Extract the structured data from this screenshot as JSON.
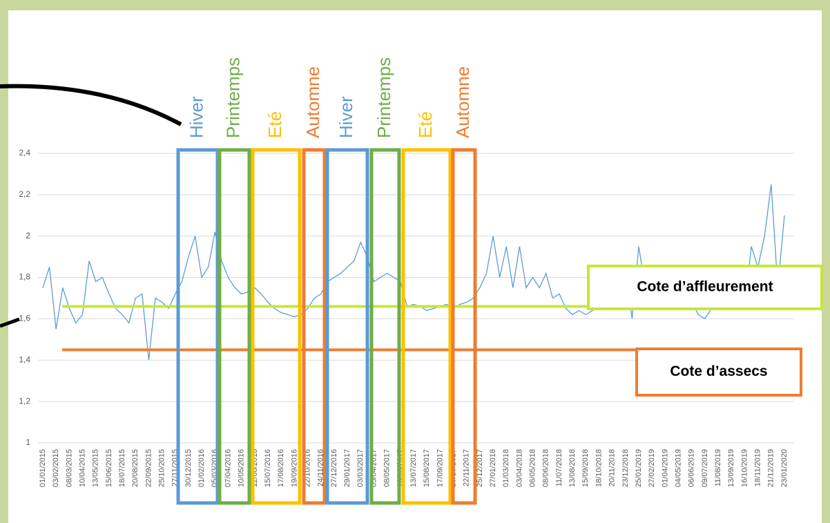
{
  "chart_data": {
    "type": "line",
    "categories": [
      "01/01/2015",
      null,
      "03/02/2015",
      null,
      "08/03/2015",
      null,
      "10/04/2015",
      null,
      "13/05/2015",
      null,
      "15/06/2015",
      null,
      "18/07/2015",
      null,
      "20/08/2015",
      null,
      "22/09/2015",
      null,
      "25/10/2015",
      null,
      "27/11/2015",
      null,
      "30/12/2015",
      null,
      "01/02/2016",
      null,
      "05/03/2016",
      null,
      "07/04/2016",
      null,
      "10/05/2016",
      null,
      "12/06/2016",
      null,
      "15/07/2016",
      null,
      "17/08/2016",
      null,
      "19/09/2016",
      null,
      "22/10/2016",
      null,
      "24/11/2016",
      null,
      "27/12/2016",
      null,
      "29/01/2017",
      null,
      "03/03/2017",
      null,
      "05/04/2017",
      null,
      "08/05/2017",
      null,
      "10/06/2017",
      null,
      "13/07/2017",
      null,
      "15/08/2017",
      null,
      "17/09/2017",
      null,
      "20/10/2017",
      null,
      "22/11/2017",
      null,
      "25/12/2017",
      null,
      "27/01/2018",
      null,
      "01/03/2018",
      null,
      "03/04/2018",
      null,
      "06/05/2018",
      null,
      "08/06/2018",
      null,
      "11/07/2018",
      null,
      "13/08/2018",
      null,
      "15/09/2018",
      null,
      "18/10/2018",
      null,
      "20/11/2018",
      null,
      "23/12/2018",
      null,
      "25/01/2019",
      null,
      "27/02/2019",
      null,
      "01/04/2019",
      null,
      "04/05/2019",
      null,
      "06/06/2019",
      null,
      "09/07/2019",
      null,
      "11/08/2019",
      null,
      "13/09/2019",
      null,
      "16/10/2019",
      null,
      "18/11/2019",
      null,
      "21/12/2019",
      null,
      "23/01/2020"
    ],
    "series": [
      {
        "color": "#5b9bd5",
        "values": [
          1.75,
          1.85,
          1.55,
          1.75,
          1.65,
          1.58,
          1.62,
          1.88,
          1.78,
          1.8,
          1.72,
          1.65,
          1.62,
          1.58,
          1.7,
          1.72,
          1.4,
          1.7,
          1.68,
          1.65,
          1.72,
          1.78,
          1.9,
          2.0,
          1.8,
          1.85,
          2.02,
          1.88,
          1.8,
          1.75,
          1.72,
          1.73,
          1.75,
          1.72,
          1.68,
          1.65,
          1.63,
          1.62,
          1.61,
          1.62,
          1.65,
          1.7,
          1.72,
          1.78,
          1.8,
          1.82,
          1.85,
          1.88,
          1.97,
          1.9,
          1.78,
          1.8,
          1.82,
          1.8,
          1.78,
          1.66,
          1.67,
          1.66,
          1.64,
          1.65,
          1.66,
          1.67,
          1.65,
          1.67,
          1.68,
          1.7,
          1.75,
          1.82,
          2.0,
          1.8,
          1.95,
          1.75,
          1.95,
          1.75,
          1.8,
          1.75,
          1.82,
          1.7,
          1.72,
          1.65,
          1.62,
          1.64,
          1.62,
          1.64,
          1.66,
          1.7,
          1.75,
          1.72,
          1.85,
          1.6,
          1.95,
          1.75,
          1.85,
          1.8,
          1.82,
          1.8,
          1.7,
          1.72,
          1.68,
          1.62,
          1.6,
          1.65,
          1.66,
          1.7,
          1.72,
          1.75,
          1.65,
          1.95,
          1.85,
          2.0,
          2.25,
          1.75,
          2.1
        ]
      }
    ],
    "ylim": [
      1,
      2.4
    ],
    "yticks": [
      1,
      {
        "value": 1.2,
        "label": "1,2"
      },
      {
        "value": 1.4,
        "label": "1,4"
      },
      {
        "value": 1.6,
        "label": "1,6"
      },
      {
        "value": 1.8,
        "label": "1,8"
      },
      2,
      {
        "value": 2.2,
        "label": "2,2"
      },
      {
        "value": 2.4,
        "label": "2,4"
      }
    ],
    "grid": true,
    "annotations": [
      {
        "label": "Hiver",
        "color": "#5b9bd5"
      },
      {
        "label": "Printemps",
        "color": "#70ad47"
      },
      {
        "label": "Eté",
        "color": "#ffc000"
      },
      {
        "label": "Automne",
        "color": "#ed7d31"
      },
      {
        "label": "Hiver",
        "color": "#5b9bd5"
      },
      {
        "label": "Printemps",
        "color": "#70ad47"
      },
      {
        "label": "Eté",
        "color": "#ffc000"
      },
      {
        "label": "Automne",
        "color": "#ed7d31"
      }
    ],
    "reference_lines": [
      {
        "label": "Cote d’affleurement",
        "value": 1.66,
        "color": "#c5e835"
      },
      {
        "label": "Cote d’assecs",
        "value": 1.45,
        "color": "#ed7d31"
      }
    ]
  }
}
